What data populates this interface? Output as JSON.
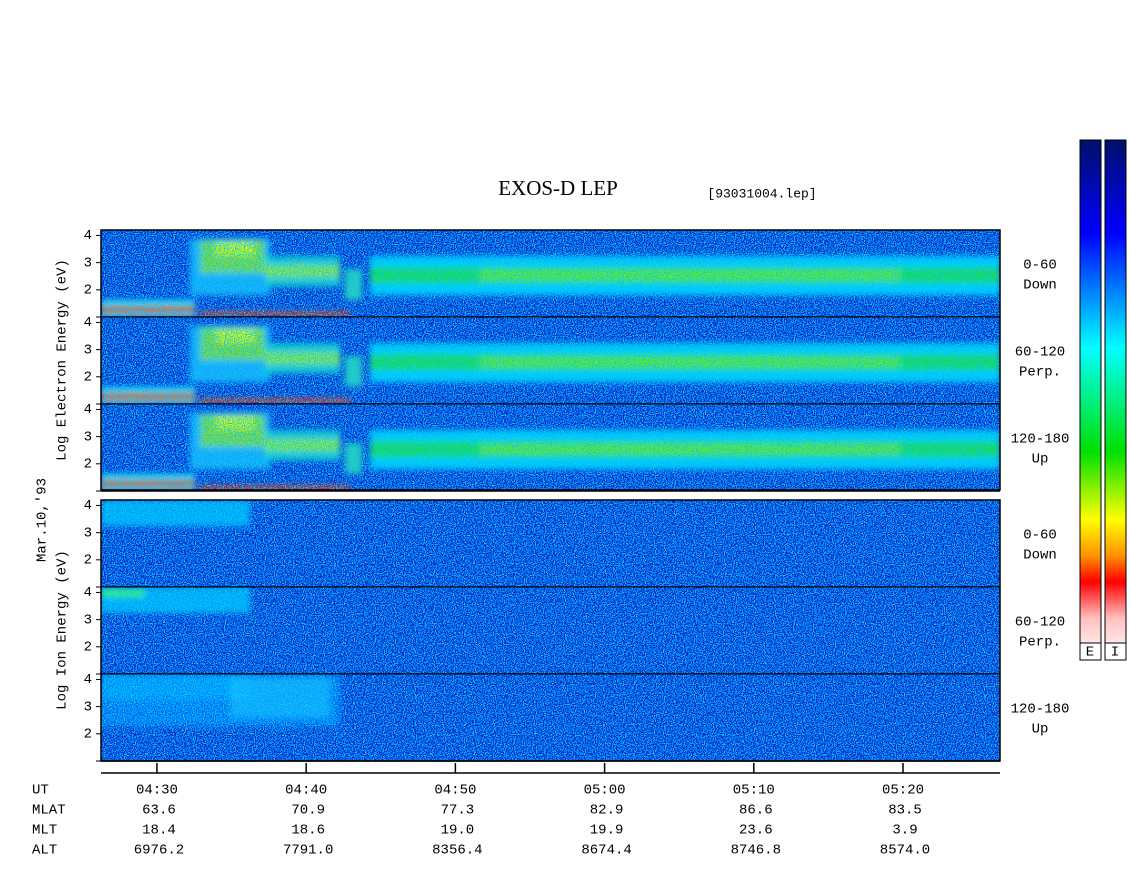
{
  "title": "EXOS-D LEP",
  "file": "[93031004.lep]",
  "chart_data": {
    "type": "spectrogram",
    "xlim": [
      26.25,
      86.5
    ],
    "xticks": [
      {
        "value": 30,
        "label": "04:30"
      },
      {
        "value": 40,
        "label": "04:40"
      },
      {
        "value": 50,
        "label": "04:50"
      },
      {
        "value": 60,
        "label": "05:00"
      },
      {
        "value": 70,
        "label": "05:10"
      },
      {
        "value": 80,
        "label": "05:20"
      }
    ],
    "ylim": [
      1,
      4.2
    ],
    "yticks": [
      2,
      3,
      4
    ],
    "ylabels": [
      "Log Electron Energy (eV)",
      "Log Ion Energy (eV)"
    ],
    "date": "Mar.10,'93",
    "panels": [
      {
        "group": "electron",
        "labels": [
          "0-60",
          "Down"
        ]
      },
      {
        "group": "electron",
        "labels": [
          "60-120",
          "Perp."
        ]
      },
      {
        "group": "electron",
        "labels": [
          "120-180",
          "Up"
        ]
      },
      {
        "group": "ion",
        "labels": [
          "0-60",
          "Down"
        ]
      },
      {
        "group": "ion",
        "labels": [
          "60-120",
          "Perp."
        ]
      },
      {
        "group": "ion",
        "labels": [
          "120-180",
          "Up"
        ]
      }
    ],
    "colorbar_labels": [
      "E",
      "I"
    ]
  },
  "footer": {
    "rows": [
      {
        "name": "UT"
      },
      {
        "name": "MLAT",
        "values": [
          "63.6",
          "70.9",
          "77.3",
          "82.9",
          "86.6",
          "83.5"
        ]
      },
      {
        "name": "MLT",
        "values": [
          "18.4",
          "18.6",
          "19.0",
          "19.9",
          "23.6",
          "3.9"
        ]
      },
      {
        "name": "ALT",
        "values": [
          "6976.2",
          "7791.0",
          "8356.4",
          "8674.4",
          "8746.8",
          "8574.0"
        ]
      }
    ]
  }
}
